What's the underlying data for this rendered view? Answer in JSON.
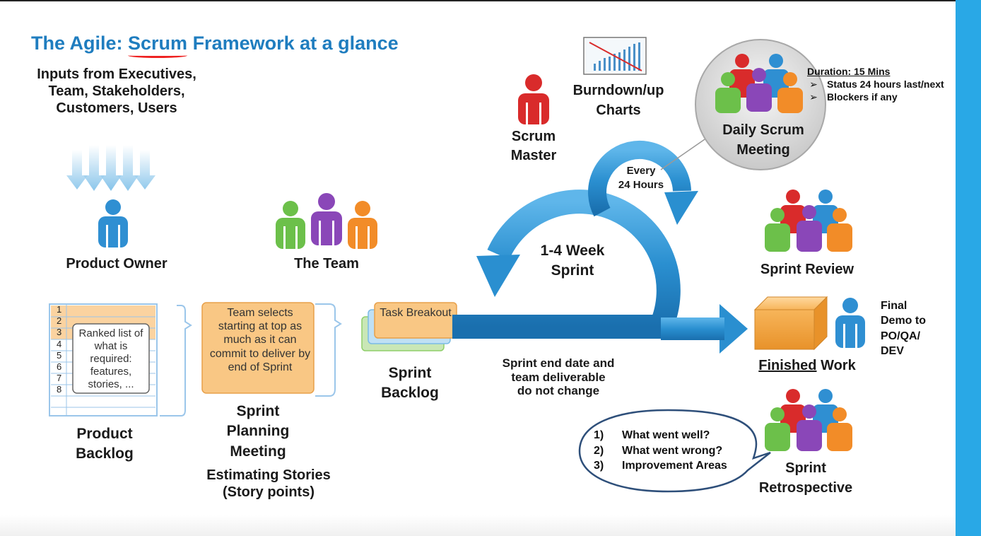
{
  "title": {
    "prefix": "The Agile: ",
    "scrum": "Scrum",
    "suffix": " Framework at a glance"
  },
  "inputs": {
    "line1": "Inputs from Executives,",
    "line2": "Team, Stakeholders,",
    "line3": "Customers, Users"
  },
  "product_owner": {
    "label": "Product Owner"
  },
  "the_team": {
    "label": "The Team"
  },
  "product_backlog": {
    "rows": [
      "1",
      "2",
      "3",
      "4",
      "5",
      "6",
      "7",
      "8"
    ],
    "card_text": "Ranked list of what is required: features, stories, ...",
    "label_line1": "Product",
    "label_line2": "Backlog"
  },
  "sprint_planning": {
    "card_text": "Team selects starting at top as much as it can commit to deliver by end of Sprint",
    "label_line1": "Sprint",
    "label_line2": "Planning",
    "label_line3": "Meeting",
    "estimating_line1": "Estimating Stories",
    "estimating_line2": "(Story points)"
  },
  "sprint_backlog": {
    "card_text": "Task Breakout",
    "label_line1": "Sprint",
    "label_line2": "Backlog"
  },
  "scrum_master": {
    "label_line1": "Scrum",
    "label_line2": "Master"
  },
  "burndown": {
    "label_line1": "Burndown/up",
    "label_line2": "Charts"
  },
  "daily_scrum": {
    "label_line1": "Daily Scrum",
    "label_line2": "Meeting",
    "duration_title": "Duration: 15 Mins",
    "bullet_symbol": "➢",
    "bullets": [
      "Status 24 hours last/next",
      "Blockers if any"
    ]
  },
  "cycle": {
    "every_line1": "Every",
    "every_line2": "24 Hours",
    "sprint_line1": "1-4 Week",
    "sprint_line2": "Sprint"
  },
  "sprint_note": {
    "line1": "Sprint end date and",
    "line2": "team deliverable",
    "line3": "do not change"
  },
  "sprint_review": {
    "label": "Sprint Review"
  },
  "finished_work": {
    "label_underlined": "Finished",
    "label_rest": " Work",
    "demo_line1": "Final",
    "demo_line2": "Demo to",
    "demo_line3": "PO/QA/",
    "demo_line4": "DEV"
  },
  "retrospective": {
    "label_line1": "Sprint",
    "label_line2": "Retrospective",
    "questions": [
      {
        "num": "1)",
        "text": "What went well?"
      },
      {
        "num": "2)",
        "text": "What went wrong?"
      },
      {
        "num": "3)",
        "text": "Improvement Areas"
      }
    ]
  },
  "colors": {
    "title_blue": "#1f7dbf",
    "arrow_blue": "#2a8fd0",
    "person_blue": "#2f8fd2",
    "person_red": "#d92b2b",
    "person_green": "#6cc04a",
    "person_purple": "#8a47b8",
    "person_orange": "#f28c28",
    "card_orange": "#f9c784",
    "right_bar": "#29a8e6"
  }
}
